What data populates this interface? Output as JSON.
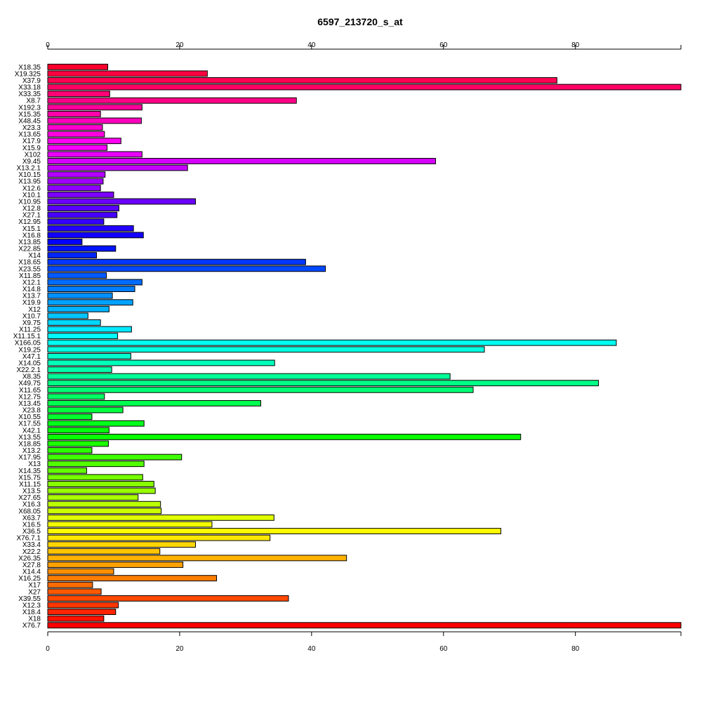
{
  "chart_data": {
    "type": "bar",
    "orientation": "horizontal",
    "title": "6597_213720_s_at",
    "xlabel": "",
    "ylabel": "",
    "xlim": [
      0,
      96
    ],
    "xticks": [
      0,
      20,
      40,
      60,
      80
    ],
    "axes": [
      "top",
      "bottom"
    ],
    "grid": false,
    "legend": "none",
    "color_scheme": "rainbow",
    "categories": [
      "X18.35",
      "X19.325",
      "X37.9",
      "X33.18",
      "X33.35",
      "X8.7",
      "X192.3",
      "X15.35",
      "X48.45",
      "X23.3",
      "X13.65",
      "X17.9",
      "X15.9",
      "X102",
      "X9.45",
      "X13.2.1",
      "X10.15",
      "X13.95",
      "X12.6",
      "X10.1",
      "X10.95",
      "X12.8",
      "X27.1",
      "X12.95",
      "X15.1",
      "X16.8",
      "X13.85",
      "X22.85",
      "X14",
      "X18.65",
      "X23.55",
      "X11.85",
      "X12.1",
      "X14.8",
      "X13.7",
      "X19.9",
      "X12",
      "X10.7",
      "X9.75",
      "X11.25",
      "X11.15.1",
      "X166.05",
      "X19.25",
      "X47.1",
      "X14.05",
      "X22.2.1",
      "X8.35",
      "X49.75",
      "X11.65",
      "X12.75",
      "X13.45",
      "X23.8",
      "X10.55",
      "X17.55",
      "X42.1",
      "X13.55",
      "X18.85",
      "X13.2",
      "X17.95",
      "X13",
      "X14.35",
      "X15.75",
      "X11.15",
      "X13.5",
      "X27.65",
      "X16.3",
      "X68.05",
      "X63.7",
      "X16.5",
      "X36.5",
      "X76.7.1",
      "X33.4",
      "X22.2",
      "X26.35",
      "X27.8",
      "X14.4",
      "X16.25",
      "X17",
      "X27",
      "X39.55",
      "X12.3",
      "X18.4",
      "X18",
      "X76.7"
    ],
    "values": [
      9.1,
      24.2,
      77.2,
      96.0,
      9.4,
      37.7,
      14.3,
      8.0,
      14.2,
      8.3,
      8.6,
      11.1,
      9.0,
      14.3,
      58.8,
      21.2,
      8.7,
      8.4,
      8.0,
      10.0,
      22.4,
      10.8,
      10.5,
      8.5,
      13.0,
      14.5,
      5.2,
      10.3,
      7.4,
      39.1,
      42.1,
      8.9,
      14.3,
      13.2,
      9.8,
      12.9,
      9.3,
      6.1,
      8.0,
      12.7,
      10.6,
      86.2,
      66.2,
      12.6,
      34.4,
      9.7,
      61.0,
      83.5,
      64.5,
      8.6,
      32.3,
      11.4,
      6.7,
      14.6,
      9.3,
      71.7,
      9.2,
      6.7,
      20.3,
      14.6,
      5.9,
      14.4,
      16.1,
      16.3,
      13.7,
      17.1,
      17.2,
      34.3,
      24.9,
      68.7,
      33.7,
      22.4,
      17.0,
      45.3,
      20.5,
      10.0,
      25.6,
      6.8,
      8.1,
      36.5,
      10.7,
      10.3,
      8.5,
      96.0
    ]
  }
}
